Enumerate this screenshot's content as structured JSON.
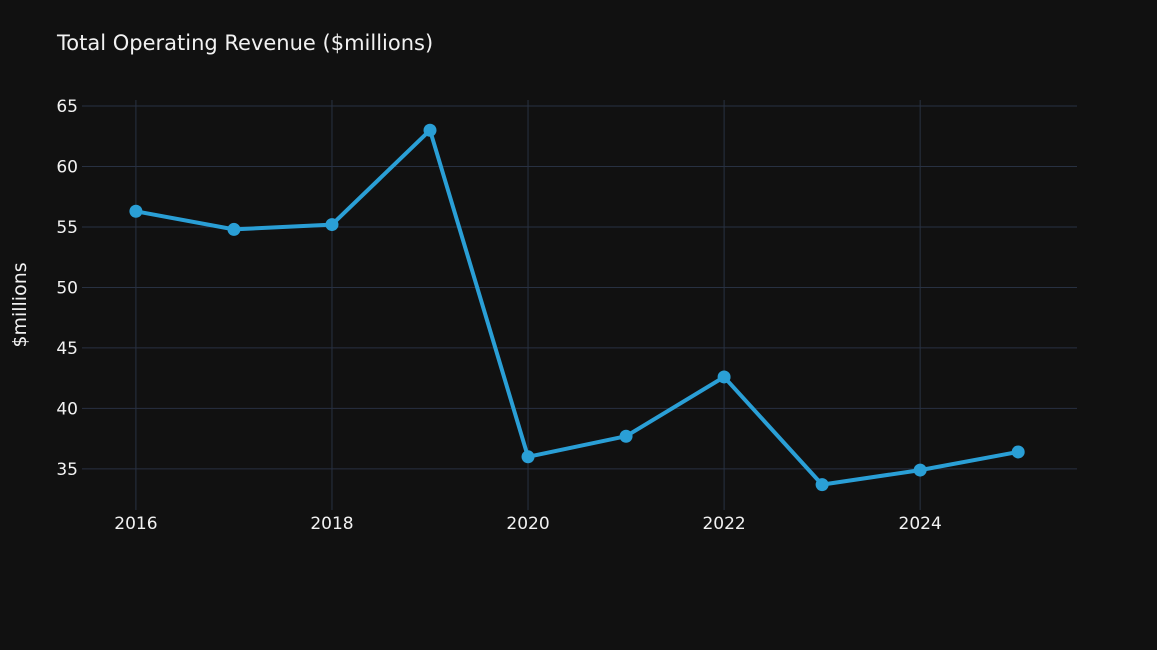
{
  "chart_data": {
    "type": "line",
    "title": "Total Operating Revenue ($millions)",
    "xlabel": "",
    "ylabel": "$millions",
    "x": [
      2016,
      2017,
      2018,
      2019,
      2020,
      2021,
      2022,
      2023,
      2024,
      2025
    ],
    "series": [
      {
        "name": "Total Operating Revenue",
        "color": "#2a9fd6",
        "values": [
          56.3,
          54.8,
          55.2,
          63.0,
          36.0,
          37.7,
          42.6,
          33.7,
          34.9,
          36.4
        ]
      }
    ],
    "xlim": [
      2015.45,
      2025.6
    ],
    "ylim": [
      31.6,
      65.5
    ],
    "xticks": [
      2016,
      2018,
      2020,
      2022,
      2024
    ],
    "xtick_labels": [
      "2016",
      "2018",
      "2020",
      "2022",
      "2024"
    ],
    "yticks": [
      35,
      40,
      45,
      50,
      55,
      60,
      65
    ],
    "ytick_labels": [
      "35",
      "40",
      "45",
      "50",
      "55",
      "60",
      "65"
    ],
    "grid": true,
    "colors": {
      "background": "#111111",
      "grid": "#283142",
      "text": "#f2f2f2"
    }
  }
}
